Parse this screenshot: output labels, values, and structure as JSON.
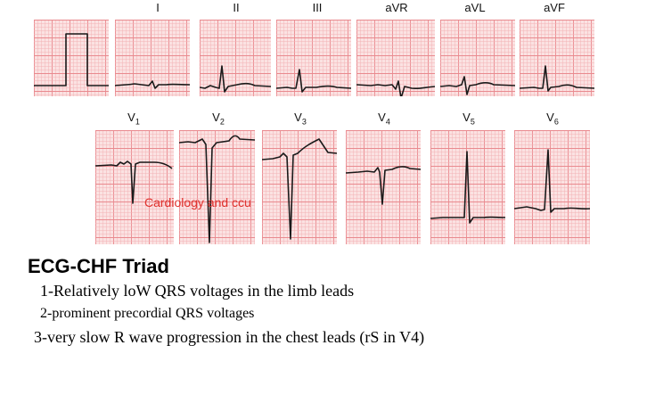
{
  "limb_leads": [
    "I",
    "II",
    "III",
    "aVR",
    "aVL",
    "aVF"
  ],
  "chest_leads": [
    {
      "base": "V",
      "sub": "1"
    },
    {
      "base": "V",
      "sub": "2"
    },
    {
      "base": "V",
      "sub": "3"
    },
    {
      "base": "V",
      "sub": "4"
    },
    {
      "base": "V",
      "sub": "5"
    },
    {
      "base": "V",
      "sub": "6"
    }
  ],
  "watermark": "Cardiology and ccu",
  "title": "ECG-CHF Triad",
  "points": [
    "1-Relatively loW QRS voltages in the limb leads",
    "2-prominent precordial QRS voltages",
    "3-very slow R wave progression in the chest leads (rS in V4)"
  ],
  "colors": {
    "grid_bg": "#fbe2e2",
    "grid_minor": "#f3b3b5",
    "grid_major": "#e98a8f",
    "trace": "#1a1a1a",
    "watermark": "#e0322e"
  }
}
